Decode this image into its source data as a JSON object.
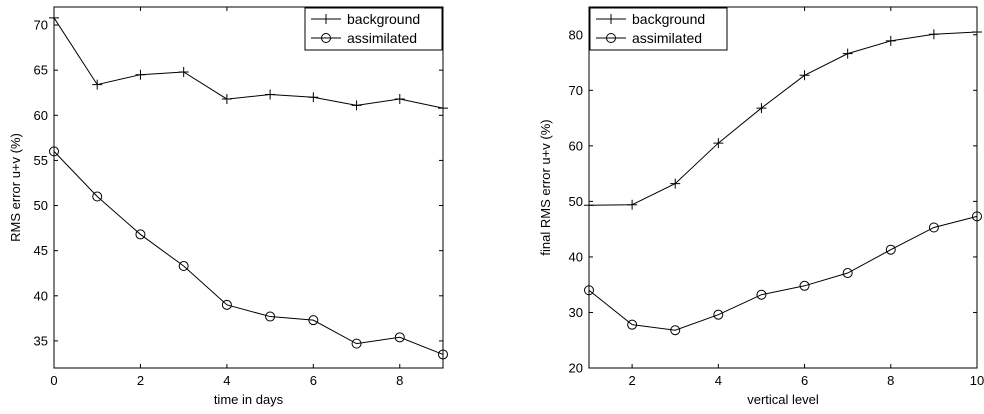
{
  "chart_data": [
    {
      "type": "line",
      "xlabel": "time in days",
      "ylabel": "RMS error u+v (%)",
      "xlim": [
        0,
        9
      ],
      "ylim": [
        32,
        72
      ],
      "xticks": [
        0,
        2,
        4,
        6,
        8
      ],
      "yticks": [
        35,
        40,
        45,
        50,
        55,
        60,
        65,
        70
      ],
      "grid": false,
      "legend_position": "top-right",
      "series": [
        {
          "name": "background",
          "marker": "plus",
          "x": [
            0,
            1,
            2,
            3,
            4,
            5,
            6,
            7,
            8,
            9
          ],
          "y": [
            70.8,
            63.4,
            64.5,
            64.8,
            61.8,
            62.3,
            62.0,
            61.1,
            61.8,
            60.8
          ]
        },
        {
          "name": "assimilated",
          "marker": "circle",
          "x": [
            0,
            1,
            2,
            3,
            4,
            5,
            6,
            7,
            8,
            9
          ],
          "y": [
            56.0,
            51.0,
            46.8,
            43.3,
            39.0,
            37.7,
            37.3,
            34.7,
            35.4,
            33.5
          ]
        }
      ]
    },
    {
      "type": "line",
      "xlabel": "vertical level",
      "ylabel": "final RMS error u+v (%)",
      "xlim": [
        1,
        10
      ],
      "ylim": [
        20,
        85
      ],
      "xticks": [
        2,
        4,
        6,
        8,
        10
      ],
      "yticks": [
        20,
        30,
        40,
        50,
        60,
        70,
        80
      ],
      "grid": false,
      "legend_position": "top-left",
      "series": [
        {
          "name": "background",
          "marker": "plus",
          "x": [
            1,
            2,
            3,
            4,
            5,
            6,
            7,
            8,
            9,
            10
          ],
          "y": [
            49.3,
            49.4,
            53.2,
            60.5,
            66.8,
            72.7,
            76.6,
            78.9,
            80.1,
            80.5
          ]
        },
        {
          "name": "assimilated",
          "marker": "circle",
          "x": [
            1,
            2,
            3,
            4,
            5,
            6,
            7,
            8,
            9,
            10
          ],
          "y": [
            34.0,
            27.8,
            26.8,
            29.6,
            33.2,
            34.8,
            37.1,
            41.3,
            45.3,
            47.3
          ]
        }
      ]
    }
  ]
}
